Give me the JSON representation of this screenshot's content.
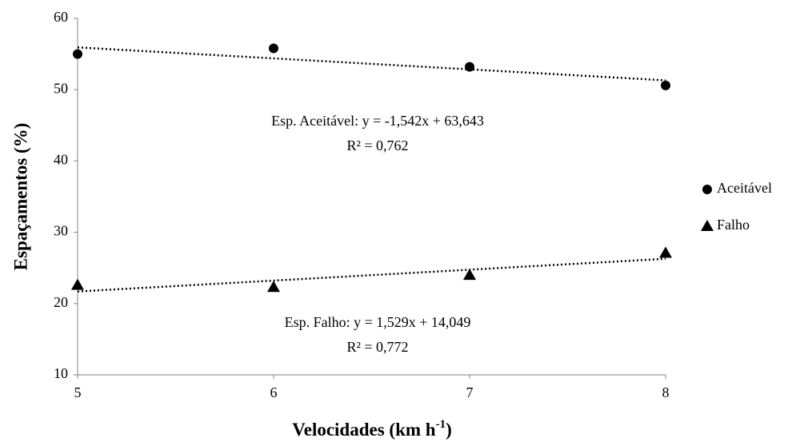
{
  "chart_data": {
    "type": "scatter",
    "x_label": {
      "text": "Velocidades (km h",
      "superscript": "-1",
      "suffix": ")"
    },
    "y_label": "Espaçamentos (%)",
    "xlim": [
      5,
      8
    ],
    "xticks": [
      5,
      6,
      7,
      8
    ],
    "ylim": [
      10,
      60
    ],
    "yticks": [
      10,
      20,
      30,
      40,
      50,
      60
    ],
    "legend": "right",
    "series": [
      {
        "name": "Aceitável",
        "color": "#000000",
        "marker": "circle",
        "x": [
          5,
          6,
          7,
          8
        ],
        "values": [
          55.0,
          55.8,
          53.2,
          50.6
        ],
        "trendline": {
          "slope": -1.542,
          "intercept": 63.643
        },
        "annotation": [
          "Esp. Aceitável: y = -1,542x + 63,643",
          "R² = 0,762"
        ]
      },
      {
        "name": "Falho",
        "color": "#000000",
        "marker": "triangle",
        "x": [
          5,
          6,
          7,
          8
        ],
        "values": [
          22.6,
          22.3,
          24.0,
          27.1
        ],
        "trendline": {
          "slope": 1.529,
          "intercept": 14.049
        },
        "annotation": [
          "Esp. Falho: y = 1,529x + 14,049",
          "R² = 0,772"
        ]
      }
    ]
  }
}
